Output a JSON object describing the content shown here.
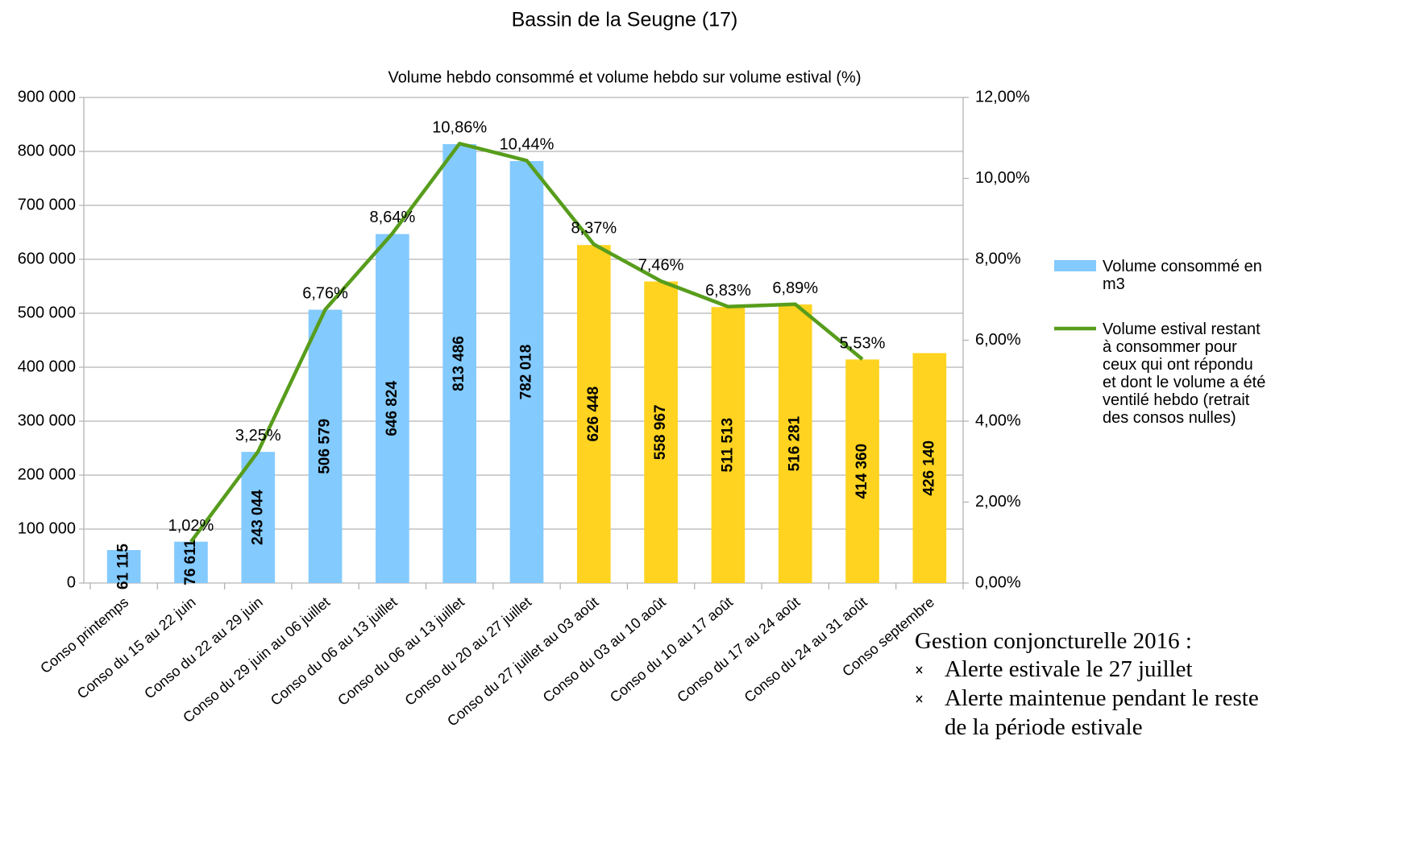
{
  "chart_data": {
    "type": "bar",
    "title": "Bassin de la Seugne (17)",
    "subtitle": "Volume hebdo consommé et volume hebdo sur volume estival (%)",
    "categories": [
      "Conso printemps",
      "Conso du 15 au 22 juin",
      "Conso du 22 au 29 juin",
      "Conso du 29 juin au 06 juillet",
      "Conso du 06 au 13 juillet",
      "Conso du 06 au 13 juillet",
      "Conso du 20 au 27 juillet",
      "Conso du 27 juillet au 03 août",
      "Conso du 03 au 10 août",
      "Conso du 10 au 17 août",
      "Conso du 17 au 24 août",
      "Conso du 24 au 31 août",
      "Conso septembre"
    ],
    "series": [
      {
        "name": "Volume consommé en m3",
        "type": "bar",
        "color": "#83caff",
        "colors": [
          "#83caff",
          "#83caff",
          "#83caff",
          "#83caff",
          "#83caff",
          "#83caff",
          "#83caff",
          "#ffd320",
          "#ffd320",
          "#ffd320",
          "#ffd320",
          "#ffd320",
          "#ffd320"
        ],
        "values": [
          61115,
          76611,
          243044,
          506579,
          646824,
          813486,
          782018,
          626448,
          558967,
          511513,
          516281,
          414360,
          426140
        ],
        "value_labels": [
          "61 115",
          "76 611",
          "243 044",
          "506 579",
          "646 824",
          "813 486",
          "782 018",
          "626 448",
          "558 967",
          "511 513",
          "516 281",
          "414 360",
          "426 140"
        ]
      },
      {
        "name": "Volume estival restant à consommer pour ceux qui ont répondu et dont le volume a été ventilé hebdo (retrait des consos nulles)",
        "type": "line",
        "axis": "y2",
        "color": "#579d1c",
        "values": [
          null,
          1.02,
          3.25,
          6.76,
          8.64,
          10.86,
          10.44,
          8.37,
          7.46,
          6.83,
          6.89,
          5.53,
          null
        ],
        "value_labels": [
          null,
          "1,02%",
          "3,25%",
          "6,76%",
          "8,64%",
          "10,86%",
          "10,44%",
          "8,37%",
          "7,46%",
          "6,83%",
          "6,89%",
          "5,53%",
          null
        ]
      }
    ],
    "ylim": [
      0,
      900000
    ],
    "yticks": [
      0,
      {
        "value": 100000,
        "label": "100 000"
      },
      {
        "value": 200000,
        "label": "200 000"
      },
      {
        "value": 300000,
        "label": "300 000"
      },
      {
        "value": 400000,
        "label": "400 000"
      },
      {
        "value": 500000,
        "label": "500 000"
      },
      {
        "value": 600000,
        "label": "600 000"
      },
      {
        "value": 700000,
        "label": "700 000"
      },
      {
        "value": 800000,
        "label": "800 000"
      },
      {
        "value": 900000,
        "label": "900 000"
      }
    ],
    "y2lim": [
      0,
      12
    ],
    "y2ticks": [
      {
        "value": 0,
        "label": "0,00%"
      },
      {
        "value": 2,
        "label": "2,00%"
      },
      {
        "value": 4,
        "label": "4,00%"
      },
      {
        "value": 6,
        "label": "6,00%"
      },
      {
        "value": 8,
        "label": "8,00%"
      },
      {
        "value": 10,
        "label": "10,00%"
      },
      {
        "value": 12,
        "label": "12,00%"
      }
    ],
    "grid": true,
    "legend": "right",
    "annotation": {
      "title": "Gestion conjoncturelle 2016 :",
      "items": [
        "Alerte estivale le 27 juillet",
        "Alerte maintenue pendant le reste de la période estivale"
      ]
    }
  }
}
